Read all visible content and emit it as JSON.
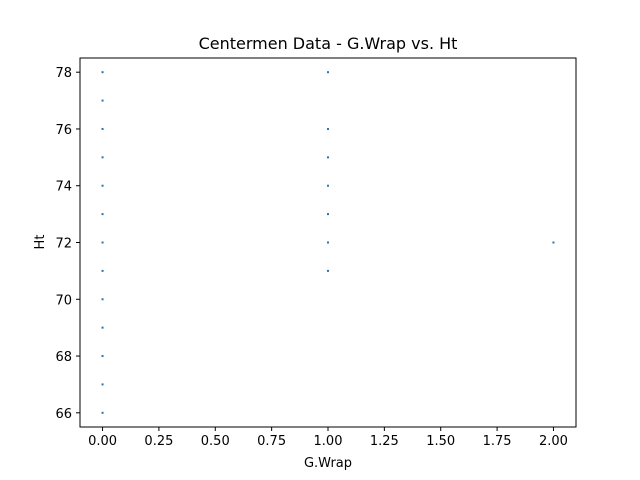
{
  "chart_data": {
    "type": "scatter",
    "title": "Centermen Data - G.Wrap vs. Ht",
    "xlabel": "G.Wrap",
    "ylabel": "Ht",
    "xlim": [
      -0.1,
      2.1
    ],
    "ylim": [
      65.5,
      78.5
    ],
    "x_ticks": [
      0.0,
      0.25,
      0.5,
      0.75,
      1.0,
      1.25,
      1.5,
      1.75,
      2.0
    ],
    "x_tick_labels": [
      "0.00",
      "0.25",
      "0.50",
      "0.75",
      "1.00",
      "1.25",
      "1.50",
      "1.75",
      "2.00"
    ],
    "y_ticks": [
      66,
      68,
      70,
      72,
      74,
      76,
      78
    ],
    "y_tick_labels": [
      "66",
      "68",
      "70",
      "72",
      "74",
      "76",
      "78"
    ],
    "grid": false,
    "marker_color": "#1f77b4",
    "points": [
      {
        "x": 0,
        "y": 66
      },
      {
        "x": 0,
        "y": 67
      },
      {
        "x": 0,
        "y": 68
      },
      {
        "x": 0,
        "y": 69
      },
      {
        "x": 0,
        "y": 70
      },
      {
        "x": 0,
        "y": 71
      },
      {
        "x": 0,
        "y": 72
      },
      {
        "x": 0,
        "y": 73
      },
      {
        "x": 0,
        "y": 74
      },
      {
        "x": 0,
        "y": 75
      },
      {
        "x": 0,
        "y": 76
      },
      {
        "x": 0,
        "y": 77
      },
      {
        "x": 0,
        "y": 78
      },
      {
        "x": 1,
        "y": 71
      },
      {
        "x": 1,
        "y": 72
      },
      {
        "x": 1,
        "y": 73
      },
      {
        "x": 1,
        "y": 74
      },
      {
        "x": 1,
        "y": 75
      },
      {
        "x": 1,
        "y": 76
      },
      {
        "x": 1,
        "y": 78
      },
      {
        "x": 2,
        "y": 72
      }
    ]
  }
}
